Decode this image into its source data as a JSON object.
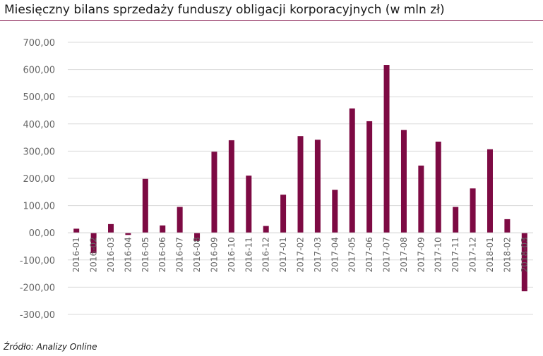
{
  "chart_data": {
    "type": "bar",
    "title": "Miesięczny bilans sprzedaży funduszy obligacji korporacyjnych (w mln zł)",
    "source": "Źródło: Analizy Online",
    "categories": [
      "2016-01",
      "2016-02",
      "2016-03",
      "2016-04",
      "2016-05",
      "2016-06",
      "2016-07",
      "2016-08",
      "2016-09",
      "2016-10",
      "2016-11",
      "2016-12",
      "2017-01",
      "2017-02",
      "2017-03",
      "2017-04",
      "2017-05",
      "2017-06",
      "2017-07",
      "2017-08",
      "2017-09",
      "2017-10",
      "2017-11",
      "2017-12",
      "2018-01",
      "2018-02",
      "2018-03"
    ],
    "values": [
      15,
      -75,
      32,
      -8,
      198,
      27,
      95,
      -30,
      298,
      340,
      210,
      25,
      140,
      355,
      342,
      158,
      457,
      410,
      617,
      378,
      247,
      335,
      95,
      163,
      307,
      50,
      -215
    ],
    "yticks": [
      "700,00",
      "600,00",
      "500,00",
      "400,00",
      "300,00",
      "200,00",
      "100,00",
      "00,00",
      "-100,00",
      "-200,00",
      "-300,00"
    ],
    "ylim": [
      -300,
      700
    ],
    "bar_color": "#7d0a43",
    "grid": true
  }
}
